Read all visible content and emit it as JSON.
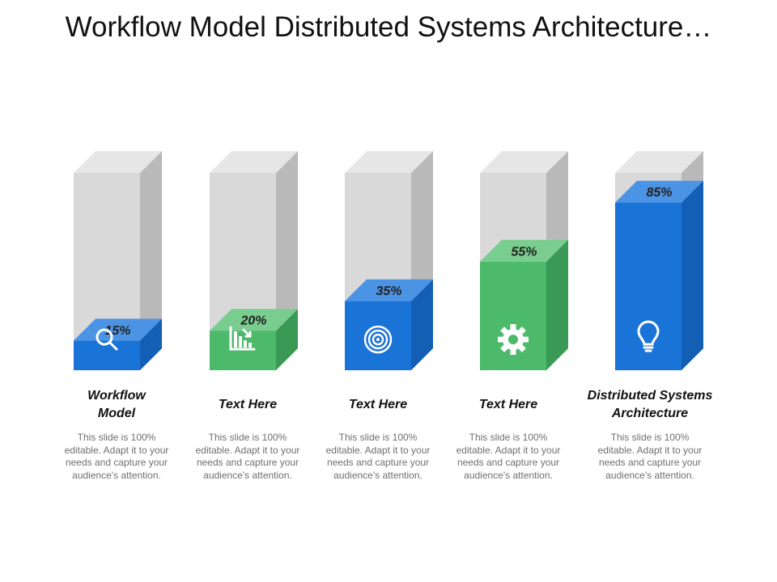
{
  "title": "Workflow Model Distributed Systems Architecture…",
  "chart_data": {
    "type": "bar",
    "categories": [
      "Workflow Model",
      "Text Here",
      "Text Here",
      "Text Here",
      "Distributed Systems Architecture"
    ],
    "values": [
      15,
      20,
      35,
      55,
      85
    ],
    "data_labels": [
      "15%",
      "20%",
      "35%",
      "55%",
      "85%"
    ],
    "ylim": [
      0,
      100
    ],
    "icons": [
      "magnifier-icon",
      "bar-chart-icon",
      "target-icon",
      "gear-icon",
      "lightbulb-icon"
    ],
    "fill_colors": [
      "blue",
      "green",
      "blue",
      "green",
      "blue"
    ]
  },
  "descriptions": [
    "This slide is 100% editable. Adapt it to your needs and capture your audience's attention.",
    "This slide is 100% editable. Adapt it to your needs and capture your audience's attention.",
    "This slide is 100% editable. Adapt it to your needs and capture your audience's attention.",
    "This slide is 100% editable. Adapt it to your needs and capture your audience's attention.",
    "This slide is 100% editable. Adapt it to your needs and capture your audience's attention."
  ],
  "colors": {
    "blue_front": "#1a73d6",
    "blue_top": "#4b93e4",
    "blue_side": "#135fb5",
    "green_front": "#4cba6a",
    "green_top": "#79cd8e",
    "green_side": "#3a9a55",
    "empty_front": "#d9d9d9",
    "empty_top": "#e6e6e6",
    "empty_side": "#b9b9b9"
  }
}
